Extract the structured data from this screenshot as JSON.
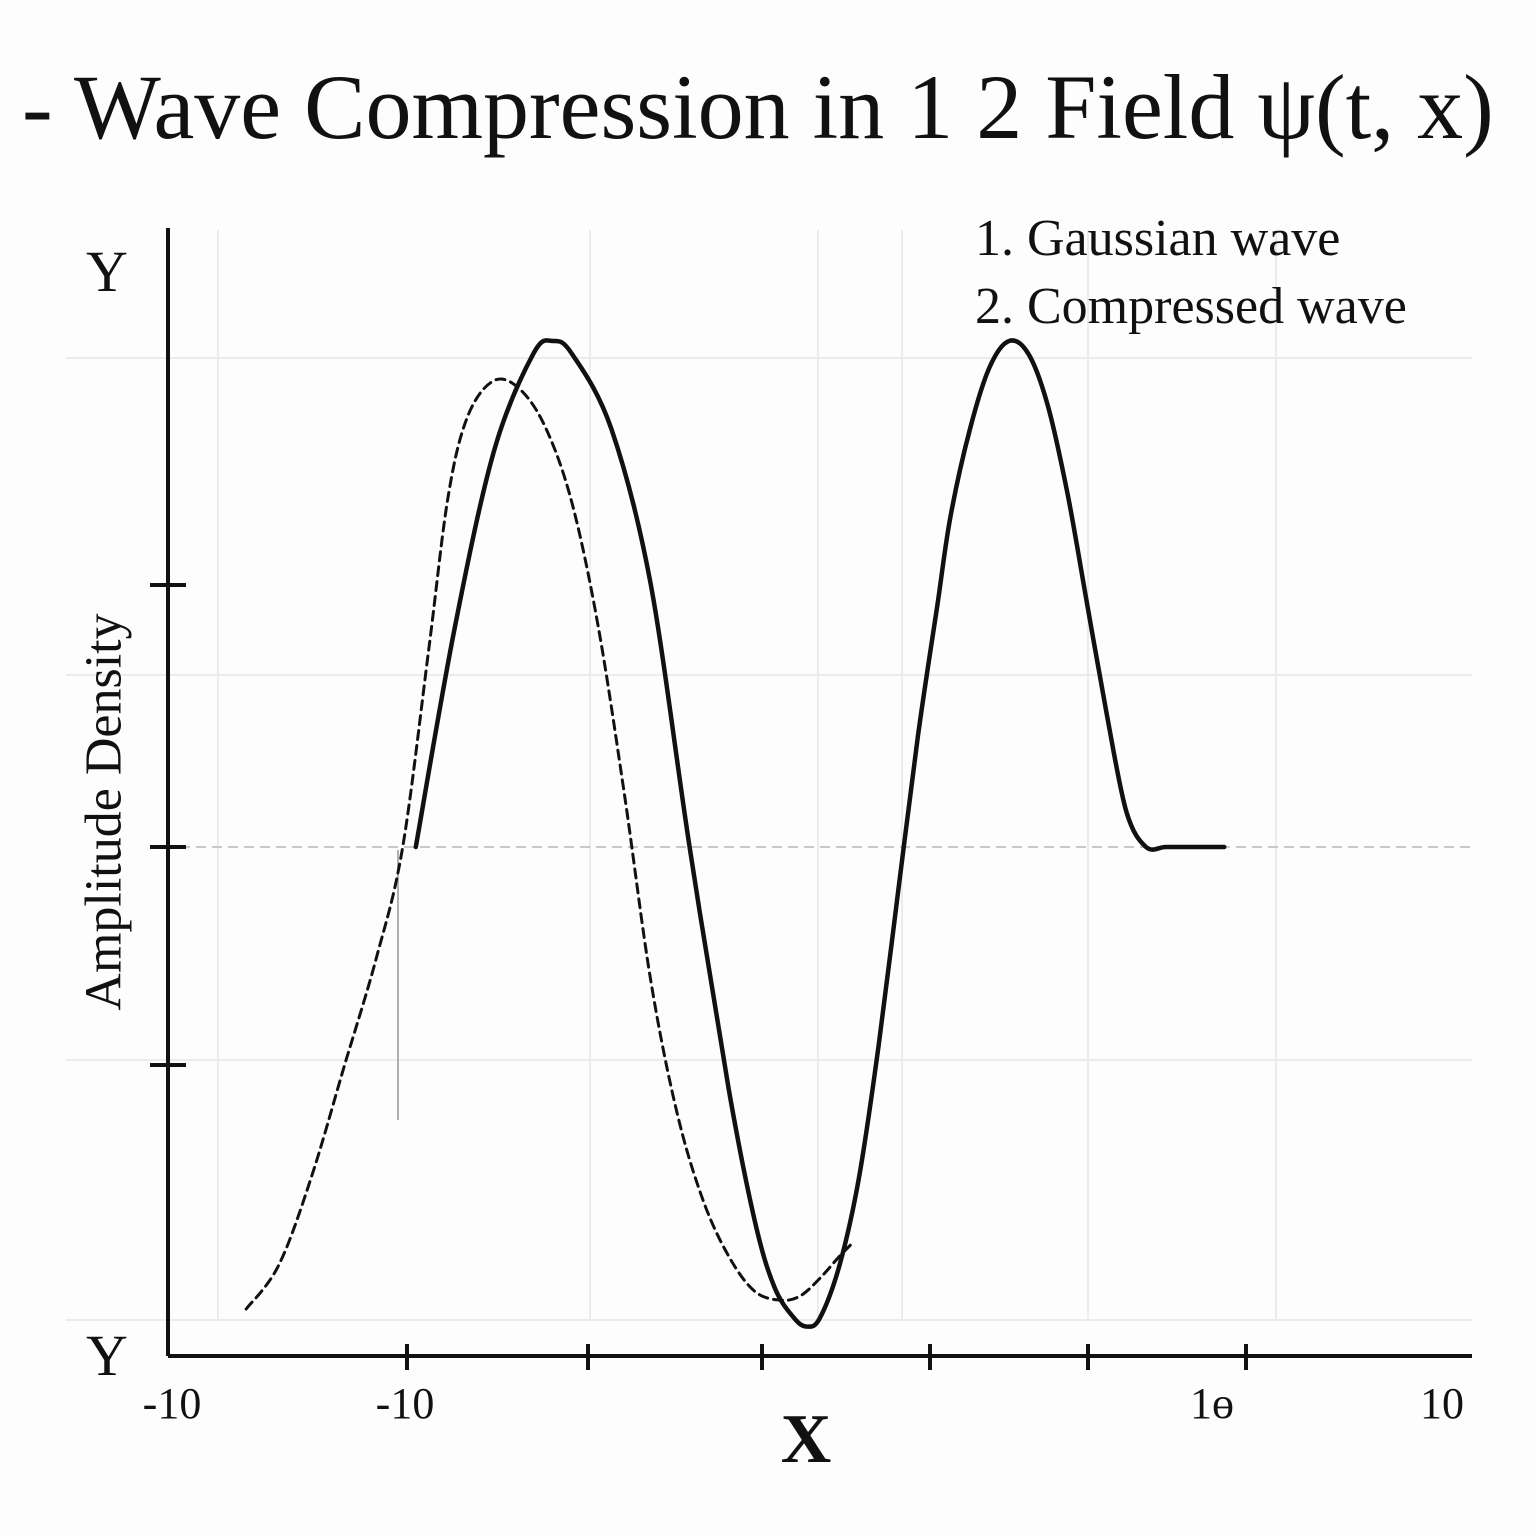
{
  "chart_data": {
    "type": "line",
    "title": "- Wave Compression in 1 2 Field ψ(t, x)",
    "xlabel": "X",
    "ylabel": "Amplitude Density",
    "y_end_labels": [
      "Y",
      "Y"
    ],
    "x_tick_labels": [
      "-10",
      "-10",
      "1ɵ",
      "10"
    ],
    "xlim": [
      -10,
      10
    ],
    "ylim": [
      -1.2,
      1.2
    ],
    "grid": true,
    "legend": {
      "position": "top-right",
      "entries": [
        "1. Gaussian wave",
        "2. Compressed wave"
      ]
    },
    "series": [
      {
        "name": "1. Gaussian wave",
        "style": "solid",
        "x": [
          -6.2,
          -5.6,
          -5.0,
          -4.4,
          -4.1,
          -3.8,
          -3.2,
          -2.6,
          -2.0,
          -1.4,
          -1.0,
          -0.7,
          -0.4,
          -0.2,
          0.0,
          0.3,
          0.6,
          0.9,
          1.2,
          1.5,
          1.8,
          2.0,
          2.3,
          2.6,
          2.9,
          3.2,
          3.5,
          3.8,
          4.1,
          4.4,
          4.7,
          5.0,
          5.3,
          5.6,
          5.9,
          6.2
        ],
        "y": [
          0.0,
          0.5,
          0.9,
          1.12,
          1.15,
          1.12,
          0.95,
          0.6,
          0.0,
          -0.55,
          -0.85,
          -1.0,
          -1.07,
          -1.09,
          -1.07,
          -0.95,
          -0.75,
          -0.45,
          -0.1,
          0.25,
          0.55,
          0.75,
          0.95,
          1.09,
          1.15,
          1.12,
          1.0,
          0.8,
          0.55,
          0.3,
          0.08,
          0.0,
          0.0,
          0.0,
          0.0,
          0.0
        ]
      },
      {
        "name": "2. Compressed wave",
        "style": "dashed",
        "x": [
          -8.8,
          -8.3,
          -7.8,
          -7.3,
          -6.8,
          -6.4,
          -6.0,
          -5.7,
          -5.4,
          -5.0,
          -4.6,
          -4.2,
          -3.8,
          -3.4,
          -3.0,
          -2.6,
          -2.2,
          -1.8,
          -1.4,
          -1.0,
          -0.6,
          -0.3,
          0.0,
          0.3,
          0.5
        ],
        "y": [
          -1.05,
          -0.95,
          -0.75,
          -0.5,
          -0.25,
          0.0,
          0.45,
          0.8,
          0.98,
          1.06,
          1.04,
          0.95,
          0.78,
          0.5,
          0.12,
          -0.3,
          -0.6,
          -0.8,
          -0.93,
          -1.01,
          -1.03,
          -1.02,
          -0.98,
          -0.93,
          -0.9
        ]
      }
    ]
  }
}
